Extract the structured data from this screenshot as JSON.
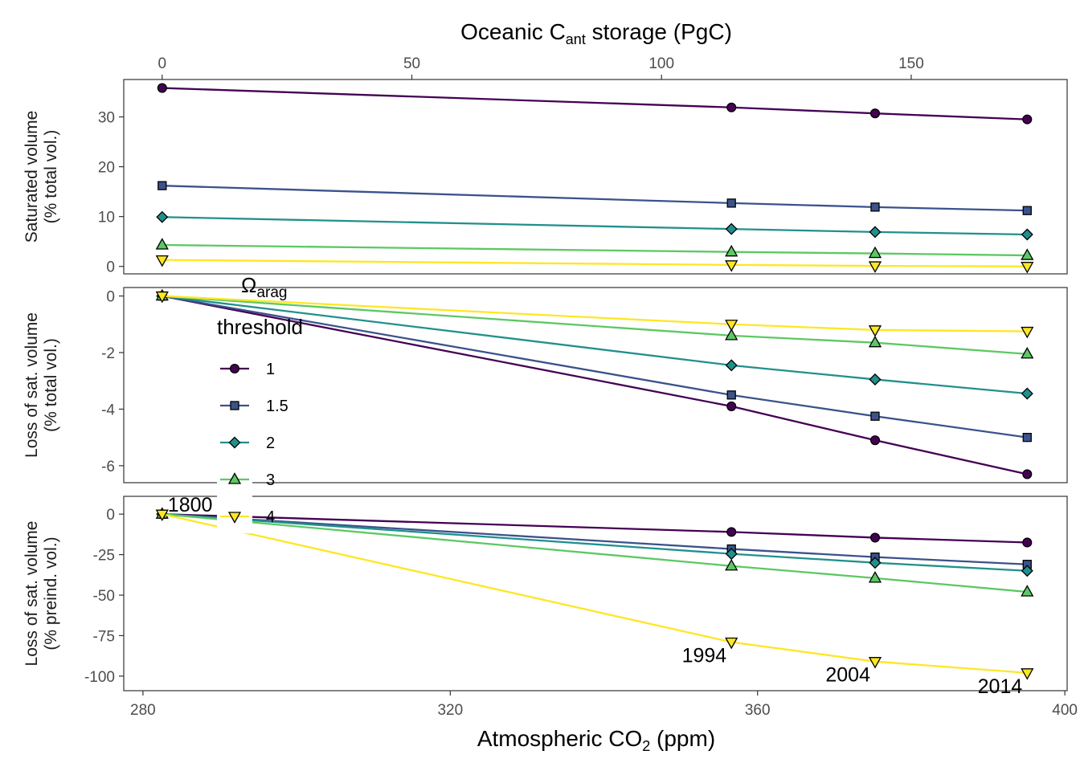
{
  "chart_data": {
    "type": "line",
    "x_axis_bottom": {
      "label_main": "Atmospheric CO",
      "label_sub": "2",
      "label_suffix": " (ppm)",
      "ticks": [
        280,
        320,
        360,
        400
      ],
      "lim": [
        277.5,
        400.3
      ]
    },
    "x_axis_top": {
      "label_main": "Oceanic C",
      "label_sub": "ant",
      "label_suffix": " storage (PgC)",
      "ticks": [
        0,
        50,
        100,
        150
      ]
    },
    "x": [
      282.5,
      356.6,
      375.3,
      395.1
    ],
    "x_top": [
      0,
      114,
      142,
      171
    ],
    "legend": {
      "title_symbol": "Ω",
      "title_sub": "arag",
      "title_line2": "threshold"
    },
    "series": [
      {
        "name": "1",
        "color": "#440154",
        "shape": "circle"
      },
      {
        "name": "1.5",
        "color": "#3B528B",
        "shape": "square"
      },
      {
        "name": "2",
        "color": "#21908C",
        "shape": "diamond"
      },
      {
        "name": "3",
        "color": "#5DC863",
        "shape": "triangle-up"
      },
      {
        "name": "4",
        "color": "#FDE725",
        "shape": "triangle-down"
      }
    ],
    "panels": [
      {
        "ylabel_line1": "Saturated volume",
        "ylabel_line2": "(% total vol.)",
        "ticks": [
          0,
          10,
          20,
          30
        ],
        "ylim": [
          -1.5,
          37.5
        ],
        "values": [
          [
            35.8,
            31.9,
            30.7,
            29.5
          ],
          [
            16.2,
            12.7,
            11.9,
            11.2
          ],
          [
            9.9,
            7.5,
            6.9,
            6.4
          ],
          [
            4.3,
            2.9,
            2.6,
            2.2
          ],
          [
            1.3,
            0.3,
            0.1,
            0.0
          ]
        ]
      },
      {
        "ylabel_line1": "Loss of sat. volume",
        "ylabel_line2": "(% total vol.)",
        "ticks": [
          0,
          -2,
          -4,
          -6
        ],
        "ylim": [
          -6.6,
          0.3
        ],
        "values": [
          [
            0,
            -3.9,
            -5.1,
            -6.3
          ],
          [
            0,
            -3.5,
            -4.25,
            -5.0
          ],
          [
            0,
            -2.45,
            -2.95,
            -3.45
          ],
          [
            0,
            -1.4,
            -1.65,
            -2.05
          ],
          [
            0,
            -1.0,
            -1.2,
            -1.25
          ]
        ]
      },
      {
        "ylabel_line1": "Loss of sat. volume",
        "ylabel_line2": "(% preind. vol.)",
        "ticks": [
          0,
          -25,
          -50,
          -75,
          -100
        ],
        "ylim": [
          -109,
          11
        ],
        "values": [
          [
            0,
            -11,
            -14.5,
            -17.5
          ],
          [
            0,
            -21.5,
            -26.5,
            -31
          ],
          [
            0,
            -24.5,
            -30,
            -35
          ],
          [
            0,
            -32,
            -39.5,
            -48
          ],
          [
            0,
            -79,
            -91,
            -98
          ]
        ],
        "year_labels": [
          "1800",
          "1994",
          "2004",
          "2014"
        ]
      }
    ]
  }
}
